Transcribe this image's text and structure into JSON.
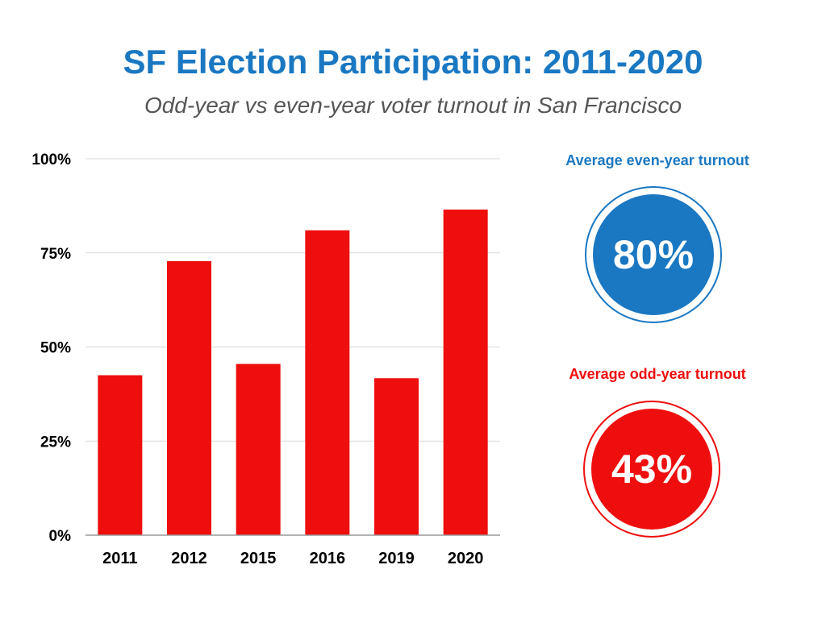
{
  "title": "SF Election Participation: 2011-2020",
  "subtitle": "Odd-year vs even-year voter turnout in San Francisco",
  "colors": {
    "blue": "#1a78c2",
    "red": "#ee0e0e",
    "grid": "#d9d9d9",
    "axis": "#999999"
  },
  "chart_data": {
    "type": "bar",
    "categories": [
      "2011",
      "2012",
      "2015",
      "2016",
      "2019",
      "2020"
    ],
    "values": [
      42.5,
      72.8,
      45.5,
      81,
      41.7,
      86.5
    ],
    "ylim": [
      0,
      100
    ],
    "yticks": [
      0,
      25,
      50,
      75,
      100
    ],
    "ytick_labels": [
      "0%",
      "25%",
      "50%",
      "75%",
      "100%"
    ],
    "grid": true,
    "bar_color": "#ee0e0e"
  },
  "stats": {
    "even": {
      "caption": "Average even-year turnout",
      "value": "80%"
    },
    "odd": {
      "caption": "Average odd-year turnout",
      "value": "43%"
    }
  }
}
